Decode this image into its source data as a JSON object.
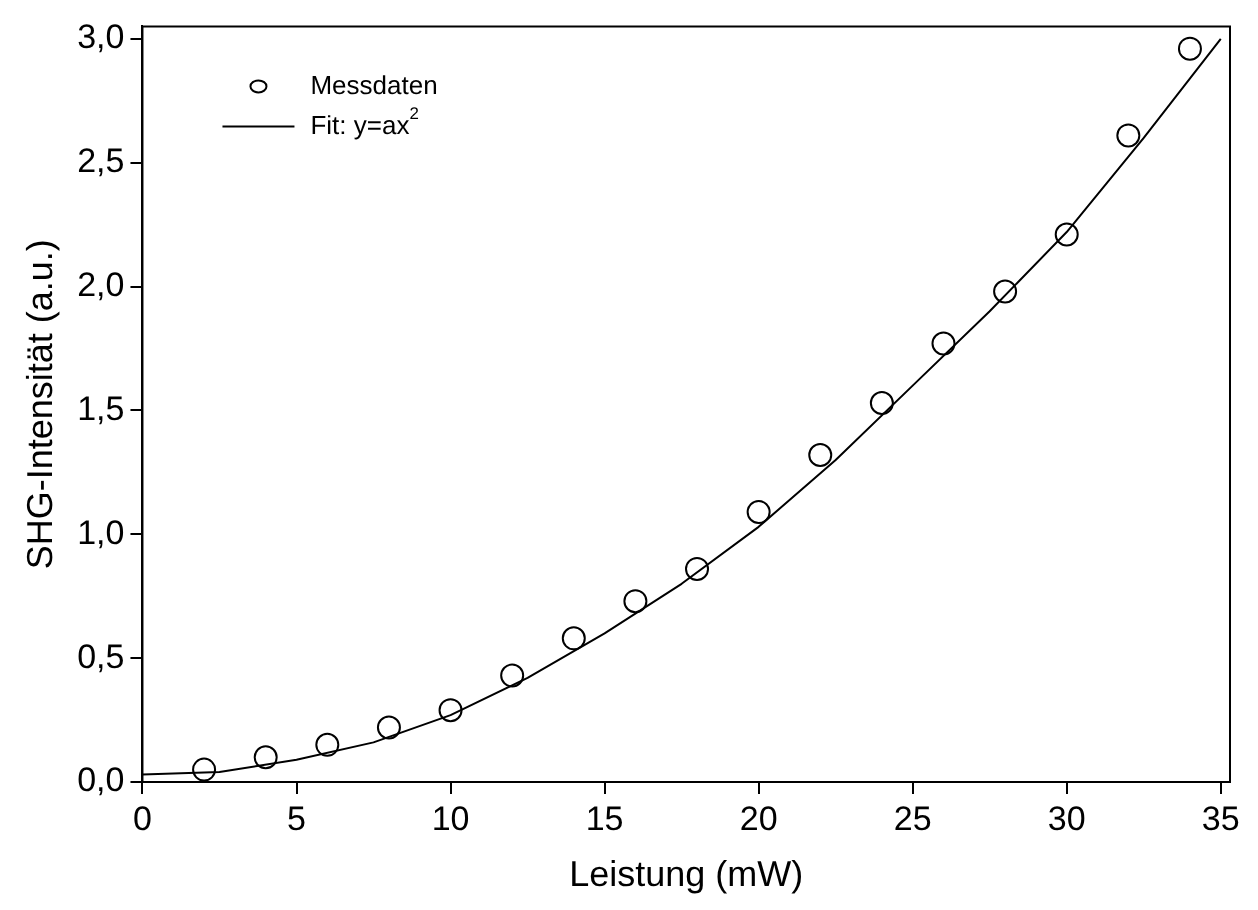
{
  "chart_data": {
    "type": "scatter",
    "xlabel": "Leistung (mW)",
    "ylabel": "SHG-Intensität (a.u.)",
    "xlim": [
      0,
      35.3
    ],
    "xticks": [
      0,
      5,
      10,
      15,
      20,
      25,
      30,
      35
    ],
    "ylim": [
      0,
      3.05
    ],
    "yticks": [
      {
        "value": 0,
        "label": "0,0"
      },
      {
        "value": 0.5,
        "label": "0,5"
      },
      {
        "value": 1,
        "label": "1,0"
      },
      {
        "value": 1.5,
        "label": "1,5"
      },
      {
        "value": 2,
        "label": "2,0"
      },
      {
        "value": 2.5,
        "label": "2,5"
      },
      {
        "value": 3,
        "label": "3,0"
      }
    ],
    "grid": false,
    "legend": "top left",
    "series": [
      {
        "name": "Messdaten",
        "type": "scatter",
        "marker": "circle",
        "color": "#000000",
        "x": [
          2,
          4,
          6,
          8,
          10,
          12,
          14,
          16,
          18,
          20,
          22,
          24,
          26,
          28,
          30,
          32,
          34
        ],
        "values": [
          0.05,
          0.1,
          0.15,
          0.22,
          0.29,
          0.43,
          0.58,
          0.73,
          0.86,
          1.09,
          1.32,
          1.53,
          1.77,
          1.98,
          2.21,
          2.61,
          2.96
        ]
      },
      {
        "name": "Fit: y=ax$^{2}$",
        "type": "line",
        "marker": "none",
        "line_style": "solid",
        "color": "#000000",
        "x": [
          0,
          2.5,
          5,
          7.5,
          10,
          12.5,
          15,
          17.5,
          20,
          22.5,
          25,
          27.5,
          30,
          32.5,
          35
        ],
        "values": [
          0.03,
          0.04,
          0.09,
          0.16,
          0.27,
          0.42,
          0.6,
          0.8,
          1.03,
          1.3,
          1.6,
          1.9,
          2.22,
          2.6,
          3.0
        ]
      }
    ]
  }
}
